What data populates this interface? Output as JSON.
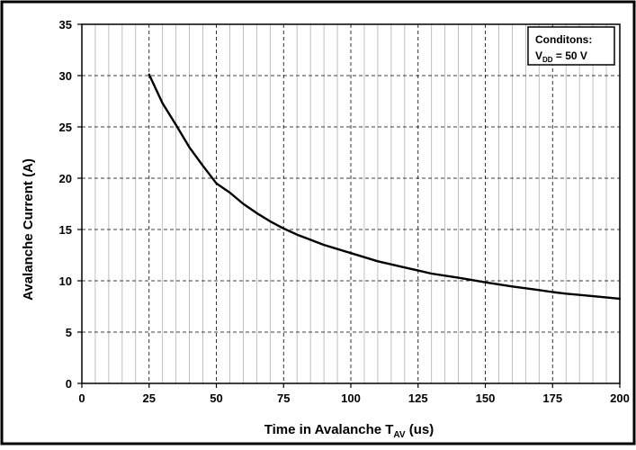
{
  "chart_data": {
    "type": "line",
    "title": "",
    "xlabel": "Time in Avalanche T",
    "xlabel_sub": "AV",
    "xlabel_suffix": " (us)",
    "ylabel": "Avalanche Current (A)",
    "xlim": [
      0,
      200
    ],
    "ylim": [
      0,
      35
    ],
    "x_ticks": [
      0,
      25,
      50,
      75,
      100,
      125,
      150,
      175,
      200
    ],
    "y_ticks": [
      0,
      5,
      10,
      15,
      20,
      25,
      30,
      35
    ],
    "x_minor_step": 5,
    "y_minor_step": 5,
    "grid": true,
    "grid_style": "dashed",
    "legend": {
      "placement": "top-right",
      "line1": "Conditons:",
      "line2_prefix": "V",
      "line2_sub": "DD",
      "line2_suffix": " = 50 V"
    },
    "series": [
      {
        "x": [
          25,
          30,
          35,
          40,
          45,
          50,
          55,
          60,
          65,
          70,
          75,
          80,
          85,
          90,
          95,
          100,
          110,
          120,
          125,
          130,
          140,
          150,
          160,
          170,
          175,
          180,
          190,
          200
        ],
        "y": [
          30.1,
          27.3,
          25.2,
          23.0,
          21.2,
          19.5,
          18.6,
          17.5,
          16.6,
          15.8,
          15.1,
          14.5,
          14.0,
          13.5,
          13.1,
          12.7,
          11.9,
          11.3,
          11.0,
          10.7,
          10.3,
          9.85,
          9.45,
          9.1,
          8.9,
          8.75,
          8.5,
          8.25
        ],
        "color": "#000000"
      }
    ]
  }
}
